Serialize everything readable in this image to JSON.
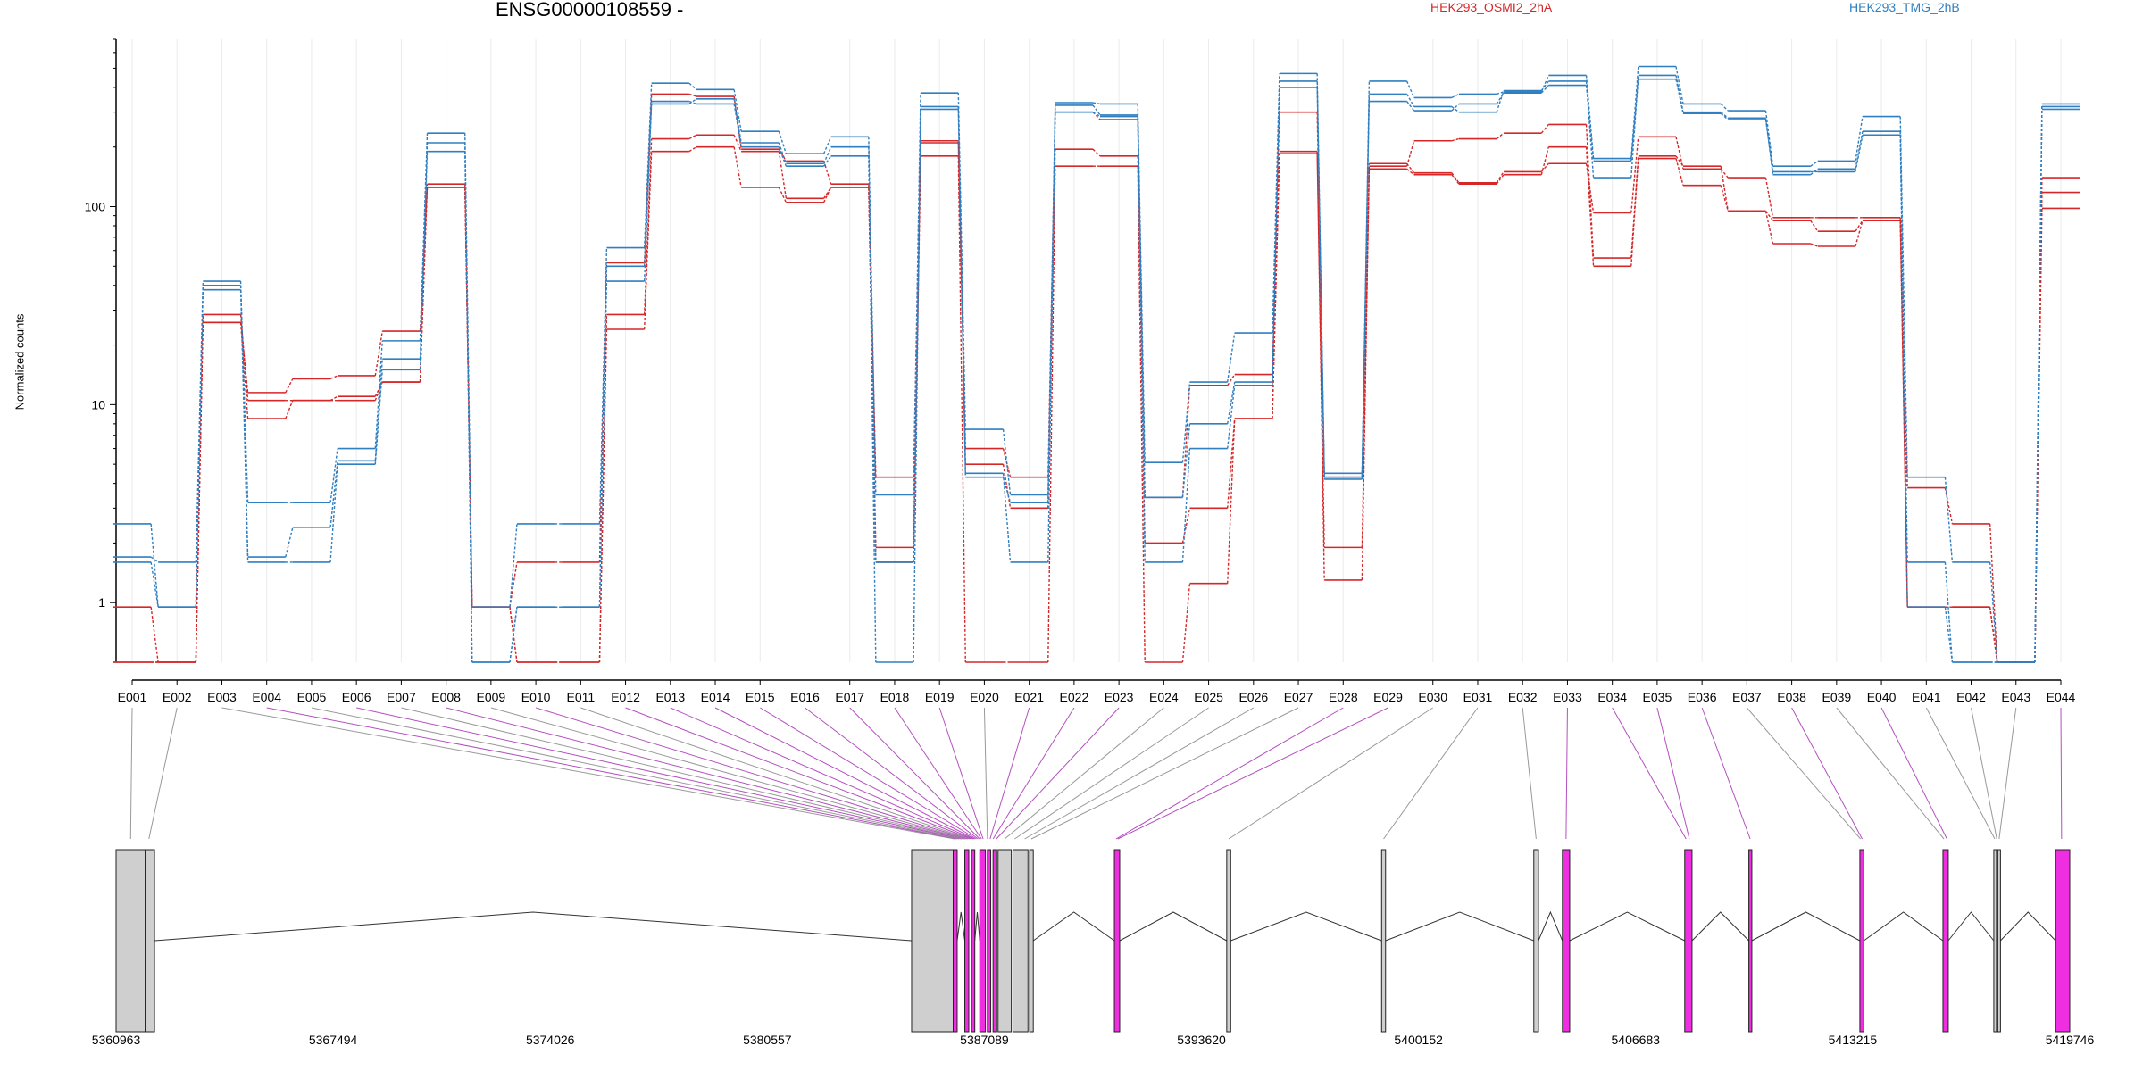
{
  "title": "ENSG00000108559 -",
  "legend": [
    {
      "label": "HEK293_OSMI2_2hA",
      "color": "#d62728"
    },
    {
      "label": "HEK293_TMG_2hB",
      "color": "#2f7fc1"
    }
  ],
  "colors": {
    "exon_highlight": "#ee2ee0",
    "exon_plain": "#cfcfcf",
    "connector_plain": "#999999",
    "connector_highlight": "#b44fc0"
  },
  "chart_data": {
    "type": "line",
    "y_scale": "log",
    "ylabel": "Normalized counts",
    "ylim": [
      0.5,
      700
    ],
    "ytick_labels": [
      "1",
      "10",
      "100"
    ],
    "ytick_values": [
      1,
      10,
      100
    ],
    "categories": [
      "E001",
      "E002",
      "E003",
      "E004",
      "E005",
      "E006",
      "E007",
      "E008",
      "E009",
      "E010",
      "E011",
      "E012",
      "E013",
      "E014",
      "E015",
      "E016",
      "E017",
      "E018",
      "E019",
      "E020",
      "E021",
      "E022",
      "E023",
      "E024",
      "E025",
      "E026",
      "E027",
      "E028",
      "E029",
      "E030",
      "E031",
      "E032",
      "E033",
      "E034",
      "E035",
      "E036",
      "E037",
      "E038",
      "E039",
      "E040",
      "E041",
      "E042",
      "E043",
      "E044"
    ],
    "series": [
      {
        "group": "HEK293_OSMI2_2hA",
        "color": "#d62728",
        "values": [
          0.95,
          0.5,
          26,
          11.5,
          13.5,
          14,
          23.5,
          125,
          0.95,
          1.6,
          1.6,
          52,
          370,
          360,
          195,
          170,
          130,
          4.3,
          210,
          6,
          4.3,
          300,
          275,
          3.4,
          12.5,
          14.2,
          300,
          4.3,
          165,
          148,
          132,
          150,
          165,
          93,
          225,
          155,
          140,
          88,
          88,
          88,
          0.95,
          0.95,
          0.5,
          140
        ]
      },
      {
        "group": "HEK293_OSMI2_2hA",
        "color": "#d62728",
        "values": [
          0.5,
          0.5,
          28.5,
          10.5,
          10.5,
          11,
          13,
          130,
          0.95,
          0.5,
          0.5,
          28.5,
          220,
          230,
          190,
          110,
          125,
          1.9,
          215,
          5,
          3,
          195,
          180,
          2,
          3,
          8.5,
          190,
          1.3,
          160,
          215,
          220,
          235,
          260,
          55,
          180,
          160,
          95,
          85,
          75,
          85,
          3.8,
          2.5,
          0.5,
          118
        ]
      },
      {
        "group": "HEK293_OSMI2_2hA",
        "color": "#d62728",
        "values": [
          0.5,
          0.5,
          26,
          8.5,
          10.5,
          10.5,
          13,
          125,
          0.95,
          0.5,
          0.5,
          24,
          190,
          200,
          125,
          105,
          125,
          1.6,
          180,
          0.5,
          0.5,
          160,
          160,
          0.5,
          1.25,
          8.5,
          185,
          1.9,
          155,
          145,
          130,
          145,
          200,
          50,
          175,
          128,
          95,
          65,
          63,
          85,
          0.95,
          0.95,
          0.5,
          98
        ]
      },
      {
        "group": "HEK293_TMG_2hB",
        "color": "#2f7fc1",
        "values": [
          2.5,
          0.95,
          40,
          3.2,
          3.2,
          6,
          21,
          235,
          0.95,
          2.5,
          2.5,
          62,
          420,
          390,
          240,
          185,
          225,
          3.5,
          375,
          7.5,
          3.5,
          335,
          330,
          5.1,
          13,
          23,
          470,
          4.3,
          430,
          355,
          370,
          380,
          460,
          175,
          510,
          330,
          305,
          160,
          170,
          285,
          4.3,
          1.6,
          0.5,
          330
        ]
      },
      {
        "group": "HEK293_TMG_2hB",
        "color": "#2f7fc1",
        "values": [
          1.7,
          1.6,
          42,
          1.7,
          2.4,
          5.2,
          17,
          210,
          0.5,
          0.95,
          0.95,
          50,
          330,
          350,
          210,
          165,
          200,
          1.6,
          320,
          4.3,
          3.2,
          325,
          290,
          3.4,
          8,
          13,
          430,
          4.2,
          370,
          320,
          300,
          385,
          430,
          140,
          460,
          300,
          280,
          145,
          155,
          240,
          1.6,
          0.5,
          0.5,
          310
        ]
      },
      {
        "group": "HEK293_TMG_2hB",
        "color": "#2f7fc1",
        "values": [
          1.6,
          0.95,
          38,
          1.6,
          1.6,
          5,
          15,
          190,
          0.5,
          0.95,
          0.95,
          42,
          340,
          330,
          200,
          160,
          180,
          0.5,
          310,
          4.5,
          1.6,
          300,
          285,
          1.6,
          6,
          12.5,
          400,
          4.5,
          340,
          305,
          330,
          375,
          410,
          170,
          440,
          295,
          275,
          150,
          150,
          230,
          0.95,
          0.5,
          0.5,
          320
        ]
      }
    ],
    "genomic_axis_labels": [
      "5360963",
      "5367494",
      "5374026",
      "5380557",
      "5387089",
      "5393620",
      "5400152",
      "5406683",
      "5413215",
      "5419746"
    ],
    "genomic_range": [
      5360963,
      5419746
    ],
    "exons": [
      {
        "start": 5360963,
        "end": 5361840,
        "highlight": false
      },
      {
        "start": 5361840,
        "end": 5362120,
        "highlight": false
      },
      {
        "start": 5384900,
        "end": 5386150,
        "highlight": false
      },
      {
        "start": 5386150,
        "end": 5386270,
        "highlight": true
      },
      {
        "start": 5386500,
        "end": 5386620,
        "highlight": true
      },
      {
        "start": 5386700,
        "end": 5386800,
        "highlight": true
      },
      {
        "start": 5386950,
        "end": 5387120,
        "highlight": true
      },
      {
        "start": 5387180,
        "end": 5387280,
        "highlight": true
      },
      {
        "start": 5387350,
        "end": 5387460,
        "highlight": true
      },
      {
        "start": 5387500,
        "end": 5387900,
        "highlight": false
      },
      {
        "start": 5387950,
        "end": 5388400,
        "highlight": false
      },
      {
        "start": 5388450,
        "end": 5388560,
        "highlight": false
      },
      {
        "start": 5391000,
        "end": 5391160,
        "highlight": true
      },
      {
        "start": 5394380,
        "end": 5394500,
        "highlight": false
      },
      {
        "start": 5399040,
        "end": 5399160,
        "highlight": false
      },
      {
        "start": 5403620,
        "end": 5403760,
        "highlight": false
      },
      {
        "start": 5404480,
        "end": 5404700,
        "highlight": true
      },
      {
        "start": 5408160,
        "end": 5408380,
        "highlight": true
      },
      {
        "start": 5410090,
        "end": 5410180,
        "highlight": true
      },
      {
        "start": 5413430,
        "end": 5413550,
        "highlight": true
      },
      {
        "start": 5415930,
        "end": 5416090,
        "highlight": true
      },
      {
        "start": 5417460,
        "end": 5417520,
        "highlight": false
      },
      {
        "start": 5417580,
        "end": 5417660,
        "highlight": false
      },
      {
        "start": 5419320,
        "end": 5419746,
        "highlight": true
      }
    ],
    "exon_links": [
      {
        "bin": "E001",
        "pos": 5361400,
        "highlight": false
      },
      {
        "bin": "E002",
        "pos": 5361950,
        "highlight": false
      },
      {
        "bin": "E003",
        "pos": 5386200,
        "highlight": false
      },
      {
        "bin": "E004",
        "pos": 5386260,
        "highlight": true
      },
      {
        "bin": "E005",
        "pos": 5386330,
        "highlight": false
      },
      {
        "bin": "E006",
        "pos": 5386400,
        "highlight": true
      },
      {
        "bin": "E007",
        "pos": 5386450,
        "highlight": false
      },
      {
        "bin": "E008",
        "pos": 5386500,
        "highlight": true
      },
      {
        "bin": "E009",
        "pos": 5386550,
        "highlight": false
      },
      {
        "bin": "E010",
        "pos": 5386600,
        "highlight": true
      },
      {
        "bin": "E011",
        "pos": 5386650,
        "highlight": false
      },
      {
        "bin": "E012",
        "pos": 5386700,
        "highlight": true
      },
      {
        "bin": "E013",
        "pos": 5386750,
        "highlight": true
      },
      {
        "bin": "E014",
        "pos": 5386800,
        "highlight": true
      },
      {
        "bin": "E015",
        "pos": 5386850,
        "highlight": true
      },
      {
        "bin": "E016",
        "pos": 5386900,
        "highlight": true
      },
      {
        "bin": "E017",
        "pos": 5386950,
        "highlight": true
      },
      {
        "bin": "E018",
        "pos": 5387000,
        "highlight": true
      },
      {
        "bin": "E019",
        "pos": 5387050,
        "highlight": true
      },
      {
        "bin": "E020",
        "pos": 5387180,
        "highlight": false
      },
      {
        "bin": "E021",
        "pos": 5387260,
        "highlight": true
      },
      {
        "bin": "E022",
        "pos": 5387350,
        "highlight": true
      },
      {
        "bin": "E023",
        "pos": 5387450,
        "highlight": true
      },
      {
        "bin": "E024",
        "pos": 5387700,
        "highlight": false
      },
      {
        "bin": "E025",
        "pos": 5388000,
        "highlight": false
      },
      {
        "bin": "E026",
        "pos": 5388300,
        "highlight": false
      },
      {
        "bin": "E027",
        "pos": 5388500,
        "highlight": false
      },
      {
        "bin": "E028",
        "pos": 5391050,
        "highlight": true
      },
      {
        "bin": "E029",
        "pos": 5391100,
        "highlight": true
      },
      {
        "bin": "E030",
        "pos": 5394440,
        "highlight": false
      },
      {
        "bin": "E031",
        "pos": 5399100,
        "highlight": false
      },
      {
        "bin": "E032",
        "pos": 5403690,
        "highlight": false
      },
      {
        "bin": "E033",
        "pos": 5404590,
        "highlight": true
      },
      {
        "bin": "E034",
        "pos": 5408200,
        "highlight": true
      },
      {
        "bin": "E035",
        "pos": 5408300,
        "highlight": true
      },
      {
        "bin": "E036",
        "pos": 5410130,
        "highlight": true
      },
      {
        "bin": "E037",
        "pos": 5413450,
        "highlight": false
      },
      {
        "bin": "E038",
        "pos": 5413500,
        "highlight": true
      },
      {
        "bin": "E039",
        "pos": 5415960,
        "highlight": false
      },
      {
        "bin": "E040",
        "pos": 5416050,
        "highlight": true
      },
      {
        "bin": "E041",
        "pos": 5417490,
        "highlight": false
      },
      {
        "bin": "E042",
        "pos": 5417550,
        "highlight": false
      },
      {
        "bin": "E043",
        "pos": 5417620,
        "highlight": false
      },
      {
        "bin": "E044",
        "pos": 5419500,
        "highlight": true
      }
    ]
  }
}
